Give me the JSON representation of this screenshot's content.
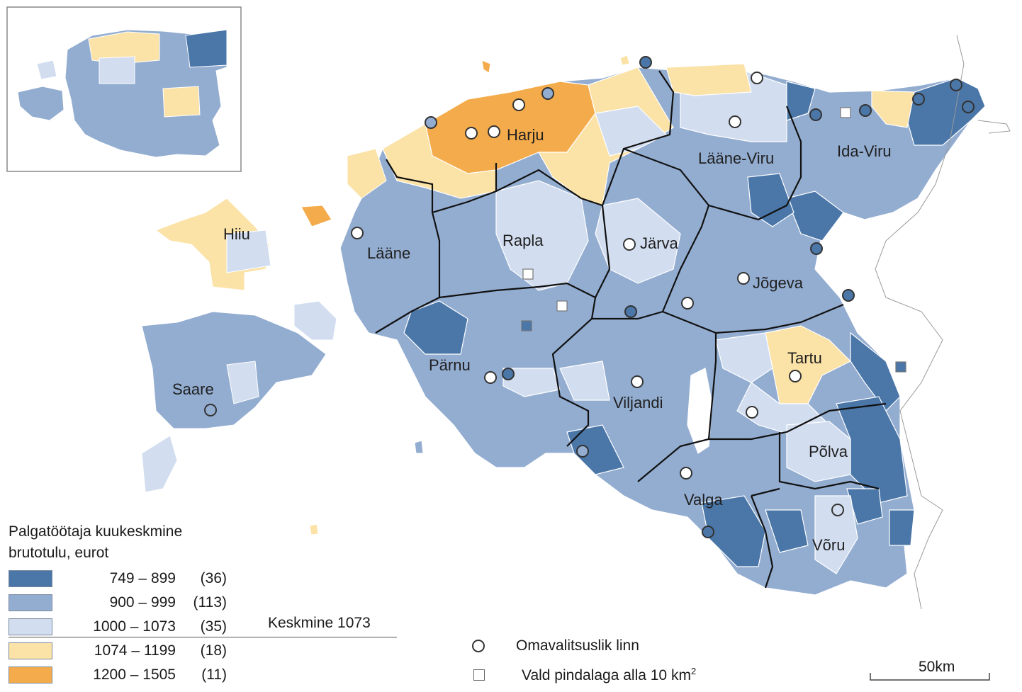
{
  "legend": {
    "title_line1": "Palgatöötaja kuukeskmine",
    "title_line2": "brutotulu, eurot",
    "classes": [
      {
        "range": "749 –   899",
        "count": "(36)",
        "color": "#4a76a8"
      },
      {
        "range": "900 –   999",
        "count": "(113)",
        "color": "#93add1"
      },
      {
        "range": "1000 – 1073",
        "count": "(35)",
        "color": "#d2def0"
      },
      {
        "range": "1074 – 1199",
        "count": "(18)",
        "color": "#fbe2a6"
      },
      {
        "range": "1200 – 1505",
        "count": "(11)",
        "color": "#f4ab4c"
      }
    ],
    "average_label": "Keskmine 1073"
  },
  "symbols": {
    "city": "Omavalitsuslik linn",
    "small_parish_prefix": "Vald pindalaga alla 10 km",
    "small_parish_sup": "2"
  },
  "scale_bar": "50km",
  "counties": {
    "harju": "Harju",
    "ida_viru": "Ida-Viru",
    "laane_viru": "Lääne-Viru",
    "hiiu": "Hiiu",
    "laane": "Lääne",
    "rapla": "Rapla",
    "jarva": "Järva",
    "jogeva": "Jõgeva",
    "tartu": "Tartu",
    "saare": "Saare",
    "parnu": "Pärnu",
    "viljandi": "Viljandi",
    "polva": "Põlva",
    "valga": "Valga",
    "voru": "Võru"
  }
}
